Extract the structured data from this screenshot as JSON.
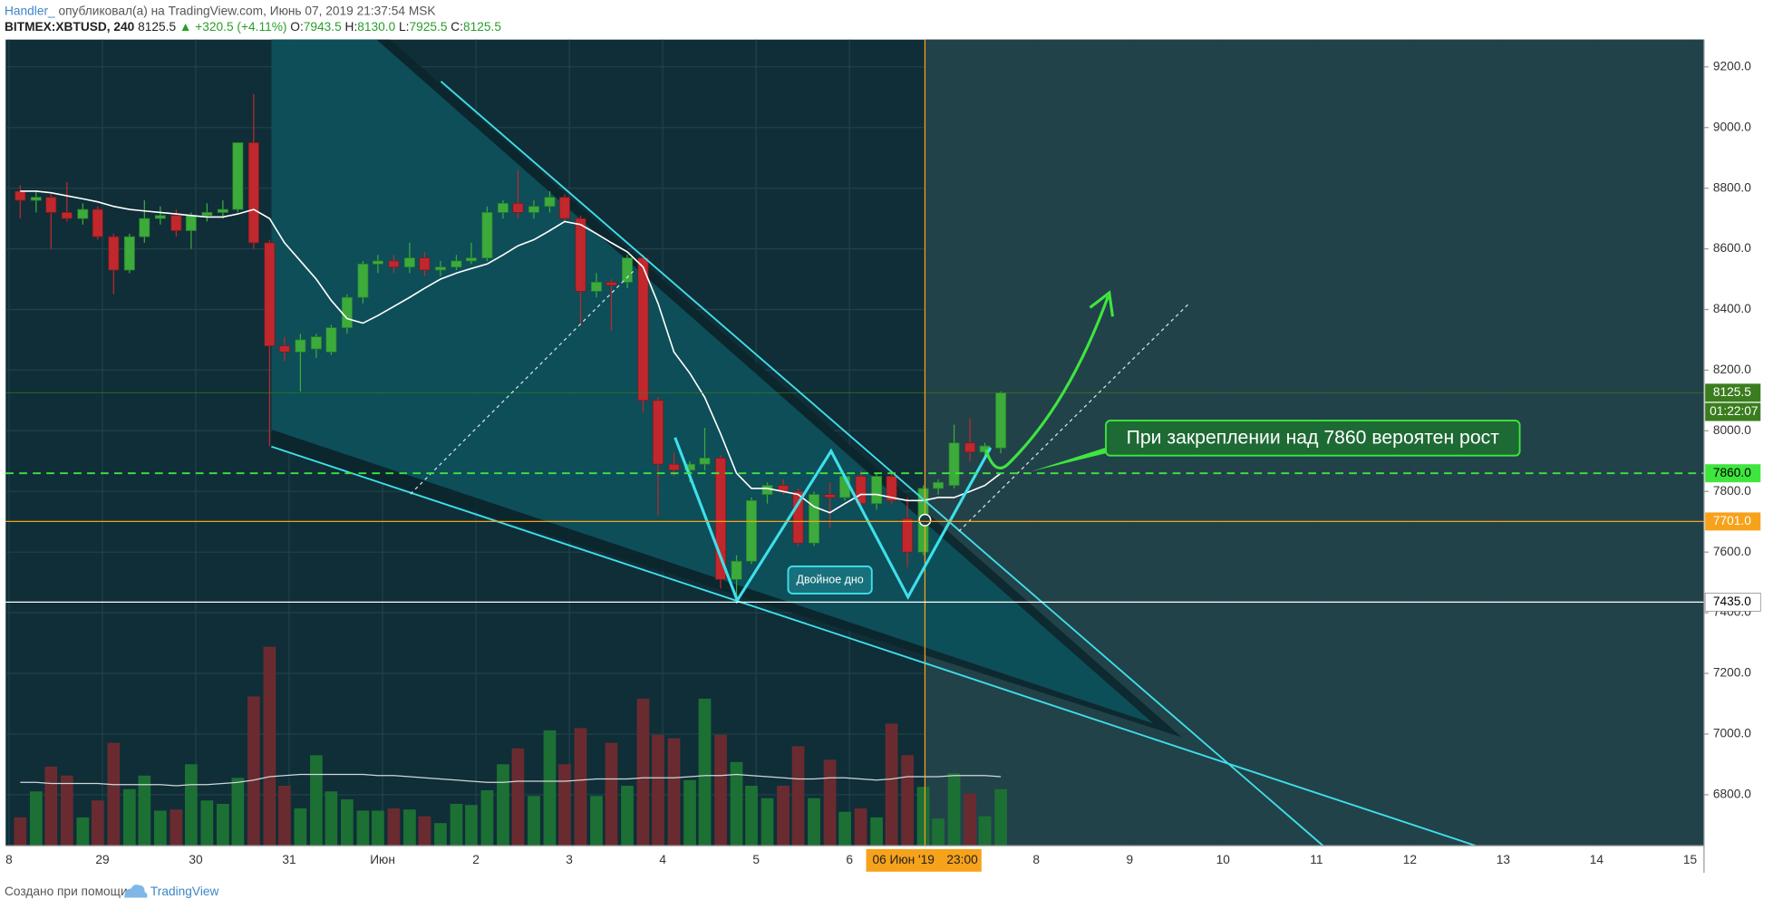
{
  "header": {
    "author": "Handler_",
    "published": "опубликовал(а) на TradingView.com, Июнь 07, 2019 21:37:54 MSK",
    "symbol": "BITMEX:XBTUSD, 240",
    "last": "8125.5",
    "change": "▲ +320.5 (+4.11%)",
    "ohlc": [
      {
        "key": "O:",
        "value": "7943.5"
      },
      {
        "key": "H:",
        "value": "8130.0"
      },
      {
        "key": "L:",
        "value": "7925.5"
      },
      {
        "key": "C:",
        "value": "8125.5"
      }
    ]
  },
  "chart_data": {
    "type": "candlestick",
    "x": [
      0.12,
      0.29,
      0.45,
      0.62,
      0.79,
      0.95,
      1.12,
      1.29,
      1.45,
      1.62,
      1.79,
      1.95,
      2.12,
      2.29,
      2.45,
      2.62,
      2.79,
      2.95,
      3.12,
      3.29,
      3.45,
      3.62,
      3.79,
      3.95,
      4.12,
      4.29,
      4.45,
      4.62,
      4.79,
      4.95,
      5.12,
      5.29,
      5.45,
      5.62,
      5.79,
      5.95,
      6.12,
      6.29,
      6.45,
      6.62,
      6.79,
      6.95,
      7.12,
      7.29,
      7.45,
      7.62,
      7.79,
      7.95,
      8.12,
      8.29,
      8.45,
      8.62,
      8.79,
      8.95,
      9.12,
      9.29,
      9.45,
      9.62,
      9.79,
      9.95,
      10.12,
      10.29,
      10.45,
      10.62
    ],
    "open": [
      8790,
      8760,
      8770,
      8720,
      8700,
      8730,
      8640,
      8530,
      8640,
      8700,
      8710,
      8660,
      8710,
      8720,
      8730,
      8950,
      8620,
      8280,
      8260,
      8270,
      8260,
      8340,
      8440,
      8550,
      8560,
      8540,
      8570,
      8530,
      8540,
      8560,
      8570,
      8720,
      8750,
      8720,
      8740,
      8770,
      8700,
      8460,
      8490,
      8490,
      8570,
      8100,
      7890,
      7870,
      7890,
      7910,
      7510,
      7570,
      7790,
      7820,
      7800,
      7630,
      7790,
      7780,
      7850,
      7760,
      7850,
      7710,
      7600,
      7810,
      7820,
      7960,
      7930,
      7943.5
    ],
    "high": [
      8810,
      8790,
      8780,
      8820,
      8750,
      8740,
      8650,
      8650,
      8760,
      8740,
      8730,
      8720,
      8750,
      8760,
      8950,
      9110,
      8630,
      8310,
      8320,
      8320,
      8350,
      8450,
      8560,
      8580,
      8580,
      8620,
      8590,
      8560,
      8580,
      8620,
      8740,
      8760,
      8860,
      8760,
      8790,
      8780,
      8710,
      8520,
      8500,
      8580,
      8580,
      8110,
      7930,
      7900,
      8010,
      7920,
      7590,
      7780,
      7830,
      7840,
      7810,
      7800,
      7830,
      7860,
      7870,
      7860,
      7860,
      7780,
      7820,
      7840,
      8020,
      8040,
      7960,
      8130
    ],
    "low": [
      8700,
      8720,
      8600,
      8690,
      8680,
      8630,
      8450,
      8520,
      8620,
      8680,
      8640,
      8600,
      8690,
      8700,
      8720,
      8600,
      7950,
      8230,
      8130,
      8240,
      8250,
      8320,
      8420,
      8520,
      8520,
      8520,
      8510,
      8510,
      8530,
      8550,
      8560,
      8700,
      8700,
      8700,
      8720,
      8690,
      8350,
      8440,
      8330,
      8470,
      8060,
      7720,
      7850,
      7830,
      7870,
      7480,
      7430,
      7560,
      7760,
      7790,
      7620,
      7620,
      7680,
      7770,
      7750,
      7740,
      7760,
      7550,
      7590,
      7790,
      7810,
      7900,
      7910,
      7925.5
    ],
    "close": [
      8760,
      8770,
      8720,
      8700,
      8730,
      8640,
      8530,
      8640,
      8700,
      8710,
      8660,
      8710,
      8720,
      8730,
      8950,
      8620,
      8280,
      8260,
      8300,
      8310,
      8340,
      8440,
      8550,
      8560,
      8540,
      8570,
      8530,
      8540,
      8560,
      8570,
      8720,
      8750,
      8720,
      8740,
      8770,
      8700,
      8460,
      8490,
      8480,
      8570,
      8100,
      7890,
      7870,
      7890,
      7910,
      7510,
      7570,
      7770,
      7820,
      7800,
      7630,
      7790,
      7780,
      7850,
      7760,
      7850,
      7770,
      7600,
      7810,
      7830,
      7960,
      7930,
      7950,
      8125.5
    ],
    "up_color": "#3cab3c",
    "down_color": "#c0282d",
    "ma": {
      "color": "#ffffff",
      "values": [
        8790,
        8790,
        8785,
        8775,
        8765,
        8755,
        8740,
        8730,
        8725,
        8720,
        8715,
        8710,
        8705,
        8705,
        8715,
        8730,
        8700,
        8620,
        8560,
        8500,
        8430,
        8370,
        8355,
        8380,
        8410,
        8440,
        8470,
        8500,
        8520,
        8535,
        8550,
        8580,
        8610,
        8630,
        8660,
        8690,
        8680,
        8650,
        8620,
        8590,
        8540,
        8420,
        8260,
        8190,
        8110,
        7990,
        7860,
        7810,
        7810,
        7800,
        7790,
        7750,
        7730,
        7760,
        7790,
        7790,
        7780,
        7770,
        7770,
        7780,
        7780,
        7800,
        7820,
        7860
      ]
    },
    "volume": {
      "ylim": [
        0,
        180
      ],
      "up_color": "#1c7034",
      "down_color": "#6a2b30",
      "values": [
        25,
        48,
        70,
        62,
        25,
        40,
        91,
        50,
        62,
        31,
        32,
        72,
        40,
        37,
        60,
        132,
        176,
        53,
        33,
        80,
        48,
        41,
        31,
        31,
        33,
        32,
        26,
        20,
        37,
        36,
        49,
        72,
        86,
        44,
        102,
        72,
        104,
        44,
        91,
        53,
        130,
        98,
        95,
        58,
        130,
        98,
        74,
        53,
        42,
        53,
        88,
        42,
        76,
        30,
        33,
        25,
        108,
        80,
        52,
        24,
        64,
        46,
        26,
        50
      ],
      "ma": [
        56,
        56,
        55,
        55,
        55,
        55,
        54,
        54,
        54,
        54,
        53,
        54,
        54,
        55,
        56,
        58,
        61,
        62,
        63,
        63,
        63,
        63,
        63,
        62,
        62,
        61,
        60,
        59,
        58,
        57,
        56,
        56,
        57,
        57,
        57,
        57,
        58,
        59,
        59,
        59,
        60,
        60,
        60,
        61,
        62,
        62,
        63,
        62,
        61,
        60,
        59,
        59,
        60,
        60,
        59,
        58,
        59,
        61,
        61,
        61,
        62,
        62,
        62,
        61
      ]
    },
    "xlim": [
      -0.036,
      18.15
    ],
    "xticks": [
      {
        "value": 0,
        "label": "8"
      },
      {
        "value": 1,
        "label": "29"
      },
      {
        "value": 2,
        "label": "30"
      },
      {
        "value": 3,
        "label": "31"
      },
      {
        "value": 4,
        "label": "Июн"
      },
      {
        "value": 5,
        "label": "2"
      },
      {
        "value": 6,
        "label": "3"
      },
      {
        "value": 7,
        "label": "4"
      },
      {
        "value": 8,
        "label": "5"
      },
      {
        "value": 9,
        "label": "6"
      },
      {
        "value": 11,
        "label": "8"
      },
      {
        "value": 12,
        "label": "9"
      },
      {
        "value": 13,
        "label": "10"
      },
      {
        "value": 14,
        "label": "11"
      },
      {
        "value": 15,
        "label": "12"
      },
      {
        "value": 16,
        "label": "13"
      },
      {
        "value": 17,
        "label": "14"
      },
      {
        "value": 18,
        "label": "15"
      }
    ],
    "ylim": [
      6632,
      9290
    ],
    "yticks": [
      {
        "value": 6800,
        "label": "6800.0"
      },
      {
        "value": 7000,
        "label": "7000.0"
      },
      {
        "value": 7200,
        "label": "7200.0"
      },
      {
        "value": 7400,
        "label": "7400.0"
      },
      {
        "value": 7600,
        "label": "7600.0"
      },
      {
        "value": 7800,
        "label": "7800.0"
      },
      {
        "value": 8000,
        "label": "8000.0"
      },
      {
        "value": 8200,
        "label": "8200.0"
      },
      {
        "value": 8400,
        "label": "8400.0"
      },
      {
        "value": 8600,
        "label": "8600.0"
      },
      {
        "value": 8800,
        "label": "8800.0"
      },
      {
        "value": 9000,
        "label": "9000.0"
      },
      {
        "value": 9200,
        "label": "9200.0"
      }
    ],
    "grid": true,
    "levels": [
      {
        "value": 7860,
        "label": "7860.0",
        "color": "#3ee63e",
        "text_color": "#000000",
        "dashed": true
      },
      {
        "value": 7701,
        "label": "7701.0",
        "color": "#f7a21b",
        "text_color": "#ffffff",
        "dashed": false
      },
      {
        "value": 7435,
        "label": "7435.0",
        "color": "#ffffff",
        "text_color": "#000000",
        "dashed": false
      }
    ],
    "last_price": {
      "value": 8125.5,
      "label": "8125.5",
      "color": "#3a7d1f"
    },
    "countdown": "01:22:07",
    "crosshair": {
      "date": "06 Июн '19",
      "time": "23:00"
    },
    "annotations": {
      "callout": "При закреплении над 7860 вероятен рост",
      "pattern": "Двойное дно"
    }
  },
  "footer": {
    "text": "Создано при помощи",
    "brand": "TradingView"
  }
}
